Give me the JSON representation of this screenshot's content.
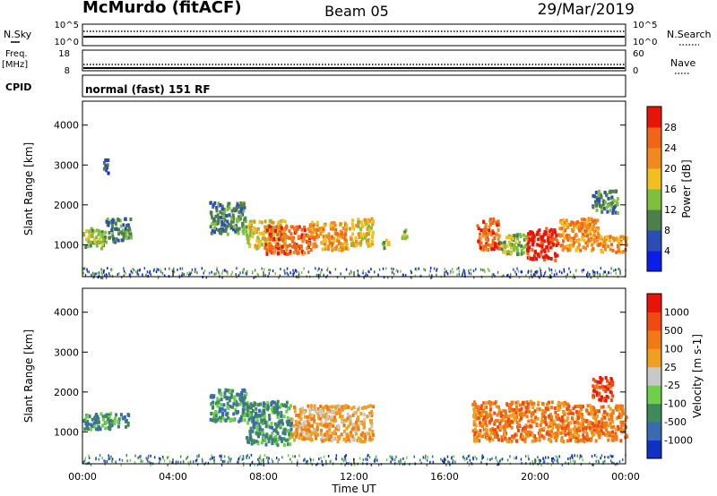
{
  "header": {
    "station": "McMurdo (fitACF)",
    "beam": "Beam 05",
    "date": "29/Mar/2019"
  },
  "top_panels": {
    "nsky_label": "N.Sky",
    "nsearch_label": "N.Search",
    "noise_ticks_left": [
      "10^5",
      "10^0"
    ],
    "noise_ticks_right": [
      "10^5",
      "10^0"
    ],
    "freq_label": "Freq.",
    "freq_unit": "[MHz]",
    "freq_ticks": [
      "18",
      "8"
    ],
    "nave_label": "Nave",
    "nave_ticks": [
      "60",
      "0"
    ],
    "cpid_label": "CPID",
    "cpid_text": "normal (fast) 151 RF"
  },
  "chart_data": [
    {
      "type": "heatmap",
      "panel": "power",
      "ylabel": "Slant Range [km]",
      "x_ticks": [
        "00:00",
        "04:00",
        "08:00",
        "12:00",
        "16:00",
        "20:00",
        "00:00"
      ],
      "xlim_hours": [
        0,
        24
      ],
      "y_ticks": [
        1000,
        2000,
        3000,
        4000
      ],
      "ylim": [
        200,
        4600
      ],
      "colorbar": {
        "label": "Power [dB]",
        "ticks": [
          4,
          8,
          12,
          16,
          20,
          24,
          28
        ],
        "range": [
          0,
          32
        ],
        "colors": [
          "#0a1ee8",
          "#2b4db8",
          "#4e7f4a",
          "#7fbf3f",
          "#f0c020",
          "#f08a1e",
          "#ef6618",
          "#e8140a"
        ]
      },
      "echo_regions": [
        {
          "t0": 0.0,
          "t1": 1.0,
          "r0": 950,
          "r1": 1450,
          "level": 3
        },
        {
          "t0": 1.0,
          "t1": 2.1,
          "r0": 1100,
          "r1": 1700,
          "level": 2
        },
        {
          "t0": 0.9,
          "t1": 1.1,
          "r0": 2750,
          "r1": 3200,
          "level": 1
        },
        {
          "t0": 5.6,
          "t1": 7.2,
          "r0": 1300,
          "r1": 2100,
          "level": 2
        },
        {
          "t0": 7.2,
          "t1": 9.0,
          "r0": 950,
          "r1": 1650,
          "level": 4
        },
        {
          "t0": 8.0,
          "t1": 10.0,
          "r0": 800,
          "r1": 1500,
          "level": 6
        },
        {
          "t0": 10.0,
          "t1": 11.8,
          "r0": 900,
          "r1": 1600,
          "level": 5
        },
        {
          "t0": 11.8,
          "t1": 12.8,
          "r0": 1000,
          "r1": 1700,
          "level": 4
        },
        {
          "t0": 13.2,
          "t1": 13.5,
          "r0": 950,
          "r1": 1150,
          "level": 3
        },
        {
          "t0": 14.0,
          "t1": 14.3,
          "r0": 1200,
          "r1": 1500,
          "level": 3
        },
        {
          "t0": 17.4,
          "t1": 18.4,
          "r0": 900,
          "r1": 1700,
          "level": 6
        },
        {
          "t0": 18.4,
          "t1": 19.6,
          "r0": 800,
          "r1": 1300,
          "level": 3
        },
        {
          "t0": 19.6,
          "t1": 21.0,
          "r0": 650,
          "r1": 1450,
          "level": 7
        },
        {
          "t0": 21.0,
          "t1": 22.8,
          "r0": 900,
          "r1": 1700,
          "level": 5
        },
        {
          "t0": 22.8,
          "t1": 24.0,
          "r0": 850,
          "r1": 1250,
          "level": 5
        },
        {
          "t0": 22.5,
          "t1": 23.6,
          "r0": 1800,
          "r1": 2400,
          "level": 2
        }
      ]
    },
    {
      "type": "heatmap",
      "panel": "velocity",
      "ylabel": "Slant Range [km]",
      "xlabel": "Time UT",
      "x_ticks": [
        "00:00",
        "04:00",
        "08:00",
        "12:00",
        "16:00",
        "20:00",
        "00:00"
      ],
      "xlim_hours": [
        0,
        24
      ],
      "y_ticks": [
        1000,
        2000,
        3000,
        4000
      ],
      "ylim": [
        200,
        4600
      ],
      "colorbar": {
        "label": "Velocity [m s-1]",
        "ticks": [
          "1000",
          "500",
          "100",
          "25",
          "-25",
          "-100",
          "-500",
          "-1000"
        ],
        "colors": [
          "#1030c8",
          "#3a6ab0",
          "#3f8a5a",
          "#6fcf4a",
          "#c8c8c8",
          "#f0a020",
          "#f07a14",
          "#f04a10",
          "#e8140a"
        ]
      },
      "echo_regions": [
        {
          "t0": 0.0,
          "t1": 2.0,
          "r0": 1100,
          "r1": 1500,
          "level": 2
        },
        {
          "t0": 5.6,
          "t1": 7.2,
          "r0": 1300,
          "r1": 2100,
          "level": 2
        },
        {
          "t0": 7.2,
          "t1": 9.2,
          "r0": 700,
          "r1": 1800,
          "level": 2
        },
        {
          "t0": 9.2,
          "t1": 12.8,
          "r0": 800,
          "r1": 1700,
          "level": 5
        },
        {
          "t0": 17.2,
          "t1": 21.5,
          "r0": 800,
          "r1": 1800,
          "level": 6
        },
        {
          "t0": 21.5,
          "t1": 24.0,
          "r0": 800,
          "r1": 1700,
          "level": 6
        },
        {
          "t0": 22.5,
          "t1": 23.4,
          "r0": 1800,
          "r1": 2400,
          "level": 7
        }
      ]
    }
  ]
}
